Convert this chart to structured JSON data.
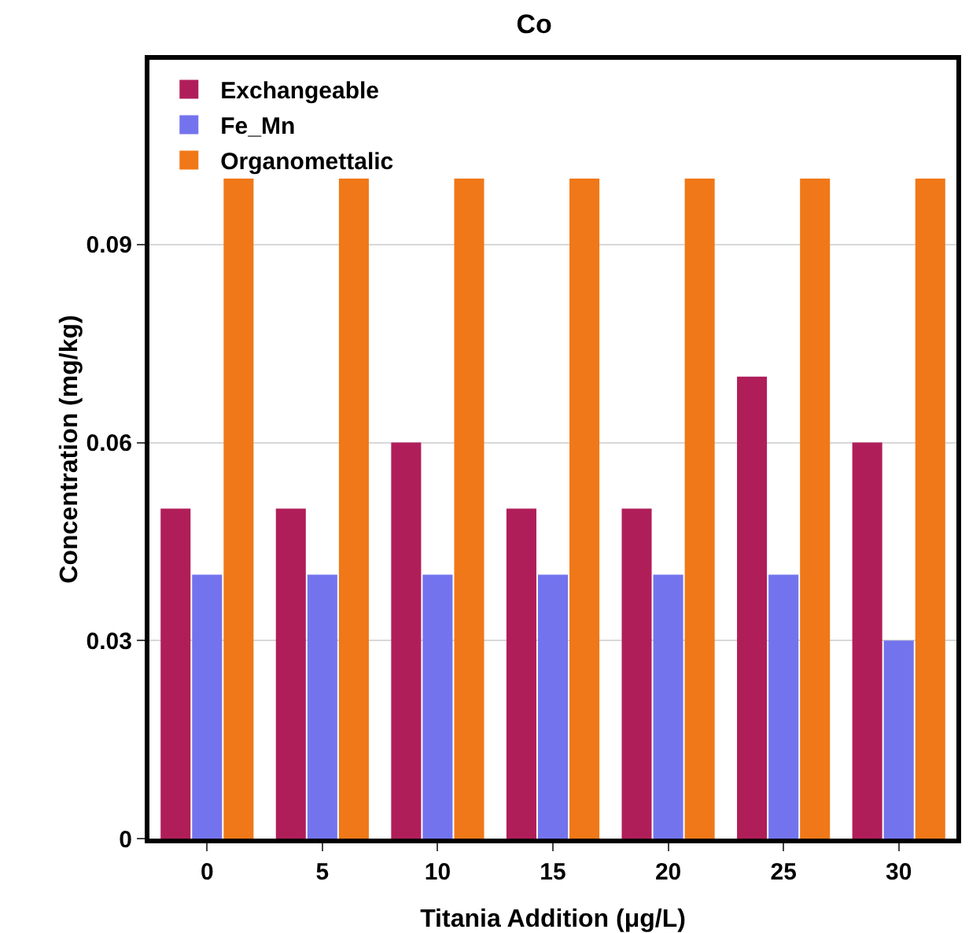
{
  "chart_data": {
    "type": "bar",
    "title": "Co",
    "xlabel": "Titania Addition (μg/L)",
    "ylabel": "Concentration (mg/kg)",
    "categories": [
      "0",
      "5",
      "10",
      "15",
      "20",
      "25",
      "30"
    ],
    "series": [
      {
        "name": "Exchangeable",
        "color": "#b01e5a",
        "values": [
          0.05,
          0.05,
          0.06,
          0.05,
          0.05,
          0.07,
          0.06
        ]
      },
      {
        "name": "Fe_Mn",
        "color": "#7373ee",
        "values": [
          0.04,
          0.04,
          0.04,
          0.04,
          0.04,
          0.04,
          0.03
        ]
      },
      {
        "name": "Organomettalic",
        "color": "#f07818",
        "values": [
          0.1,
          0.1,
          0.1,
          0.1,
          0.1,
          0.1,
          0.1
        ]
      }
    ],
    "ylim": [
      0,
      0.118
    ],
    "yticks": [
      0,
      0.03,
      0.06,
      0.09
    ],
    "grid": "y",
    "legend": "top left"
  }
}
